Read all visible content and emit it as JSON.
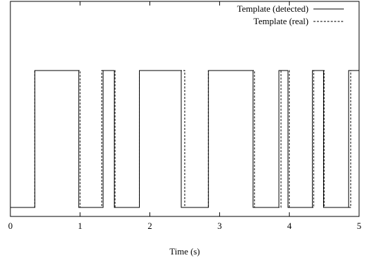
{
  "chart_data": {
    "type": "line",
    "title": "",
    "xlabel": "Time (s)",
    "ylabel": "",
    "xlim": [
      0,
      5
    ],
    "ylim": [
      0,
      1.1
    ],
    "xticks": [
      0,
      1,
      2,
      3,
      4,
      5
    ],
    "yticks": [],
    "grid": false,
    "legend_position": "top-right",
    "series": [
      {
        "name": "Template (detected)",
        "style": "solid",
        "color": "#000000",
        "x": [
          0,
          0.35,
          0.35,
          0.98,
          0.98,
          1.33,
          1.33,
          1.49,
          1.49,
          1.85,
          1.85,
          2.45,
          2.45,
          2.84,
          2.84,
          3.48,
          3.48,
          3.85,
          3.85,
          3.98,
          3.98,
          4.33,
          4.33,
          4.49,
          4.49,
          4.85,
          4.85,
          5.0
        ],
        "y": [
          0,
          0,
          1,
          1,
          0,
          0,
          1,
          1,
          0,
          0,
          1,
          1,
          0,
          0,
          1,
          1,
          0,
          0,
          1,
          1,
          0,
          0,
          1,
          1,
          0,
          0,
          1,
          1
        ]
      },
      {
        "name": "Template (real)",
        "style": "dashed",
        "color": "#000000",
        "x": [
          0,
          0.35,
          0.35,
          1.0,
          1.0,
          1.31,
          1.31,
          1.5,
          1.5,
          1.85,
          1.85,
          2.5,
          2.5,
          2.84,
          2.84,
          3.5,
          3.5,
          3.88,
          3.88,
          4.0,
          4.0,
          4.35,
          4.35,
          4.5,
          4.5,
          4.88,
          4.88,
          5.0
        ],
        "y": [
          0,
          0,
          1,
          1,
          0,
          0,
          1,
          1,
          0,
          0,
          1,
          1,
          0,
          0,
          1,
          1,
          0,
          0,
          1,
          1,
          0,
          0,
          1,
          1,
          0,
          0,
          1,
          1
        ]
      }
    ]
  }
}
